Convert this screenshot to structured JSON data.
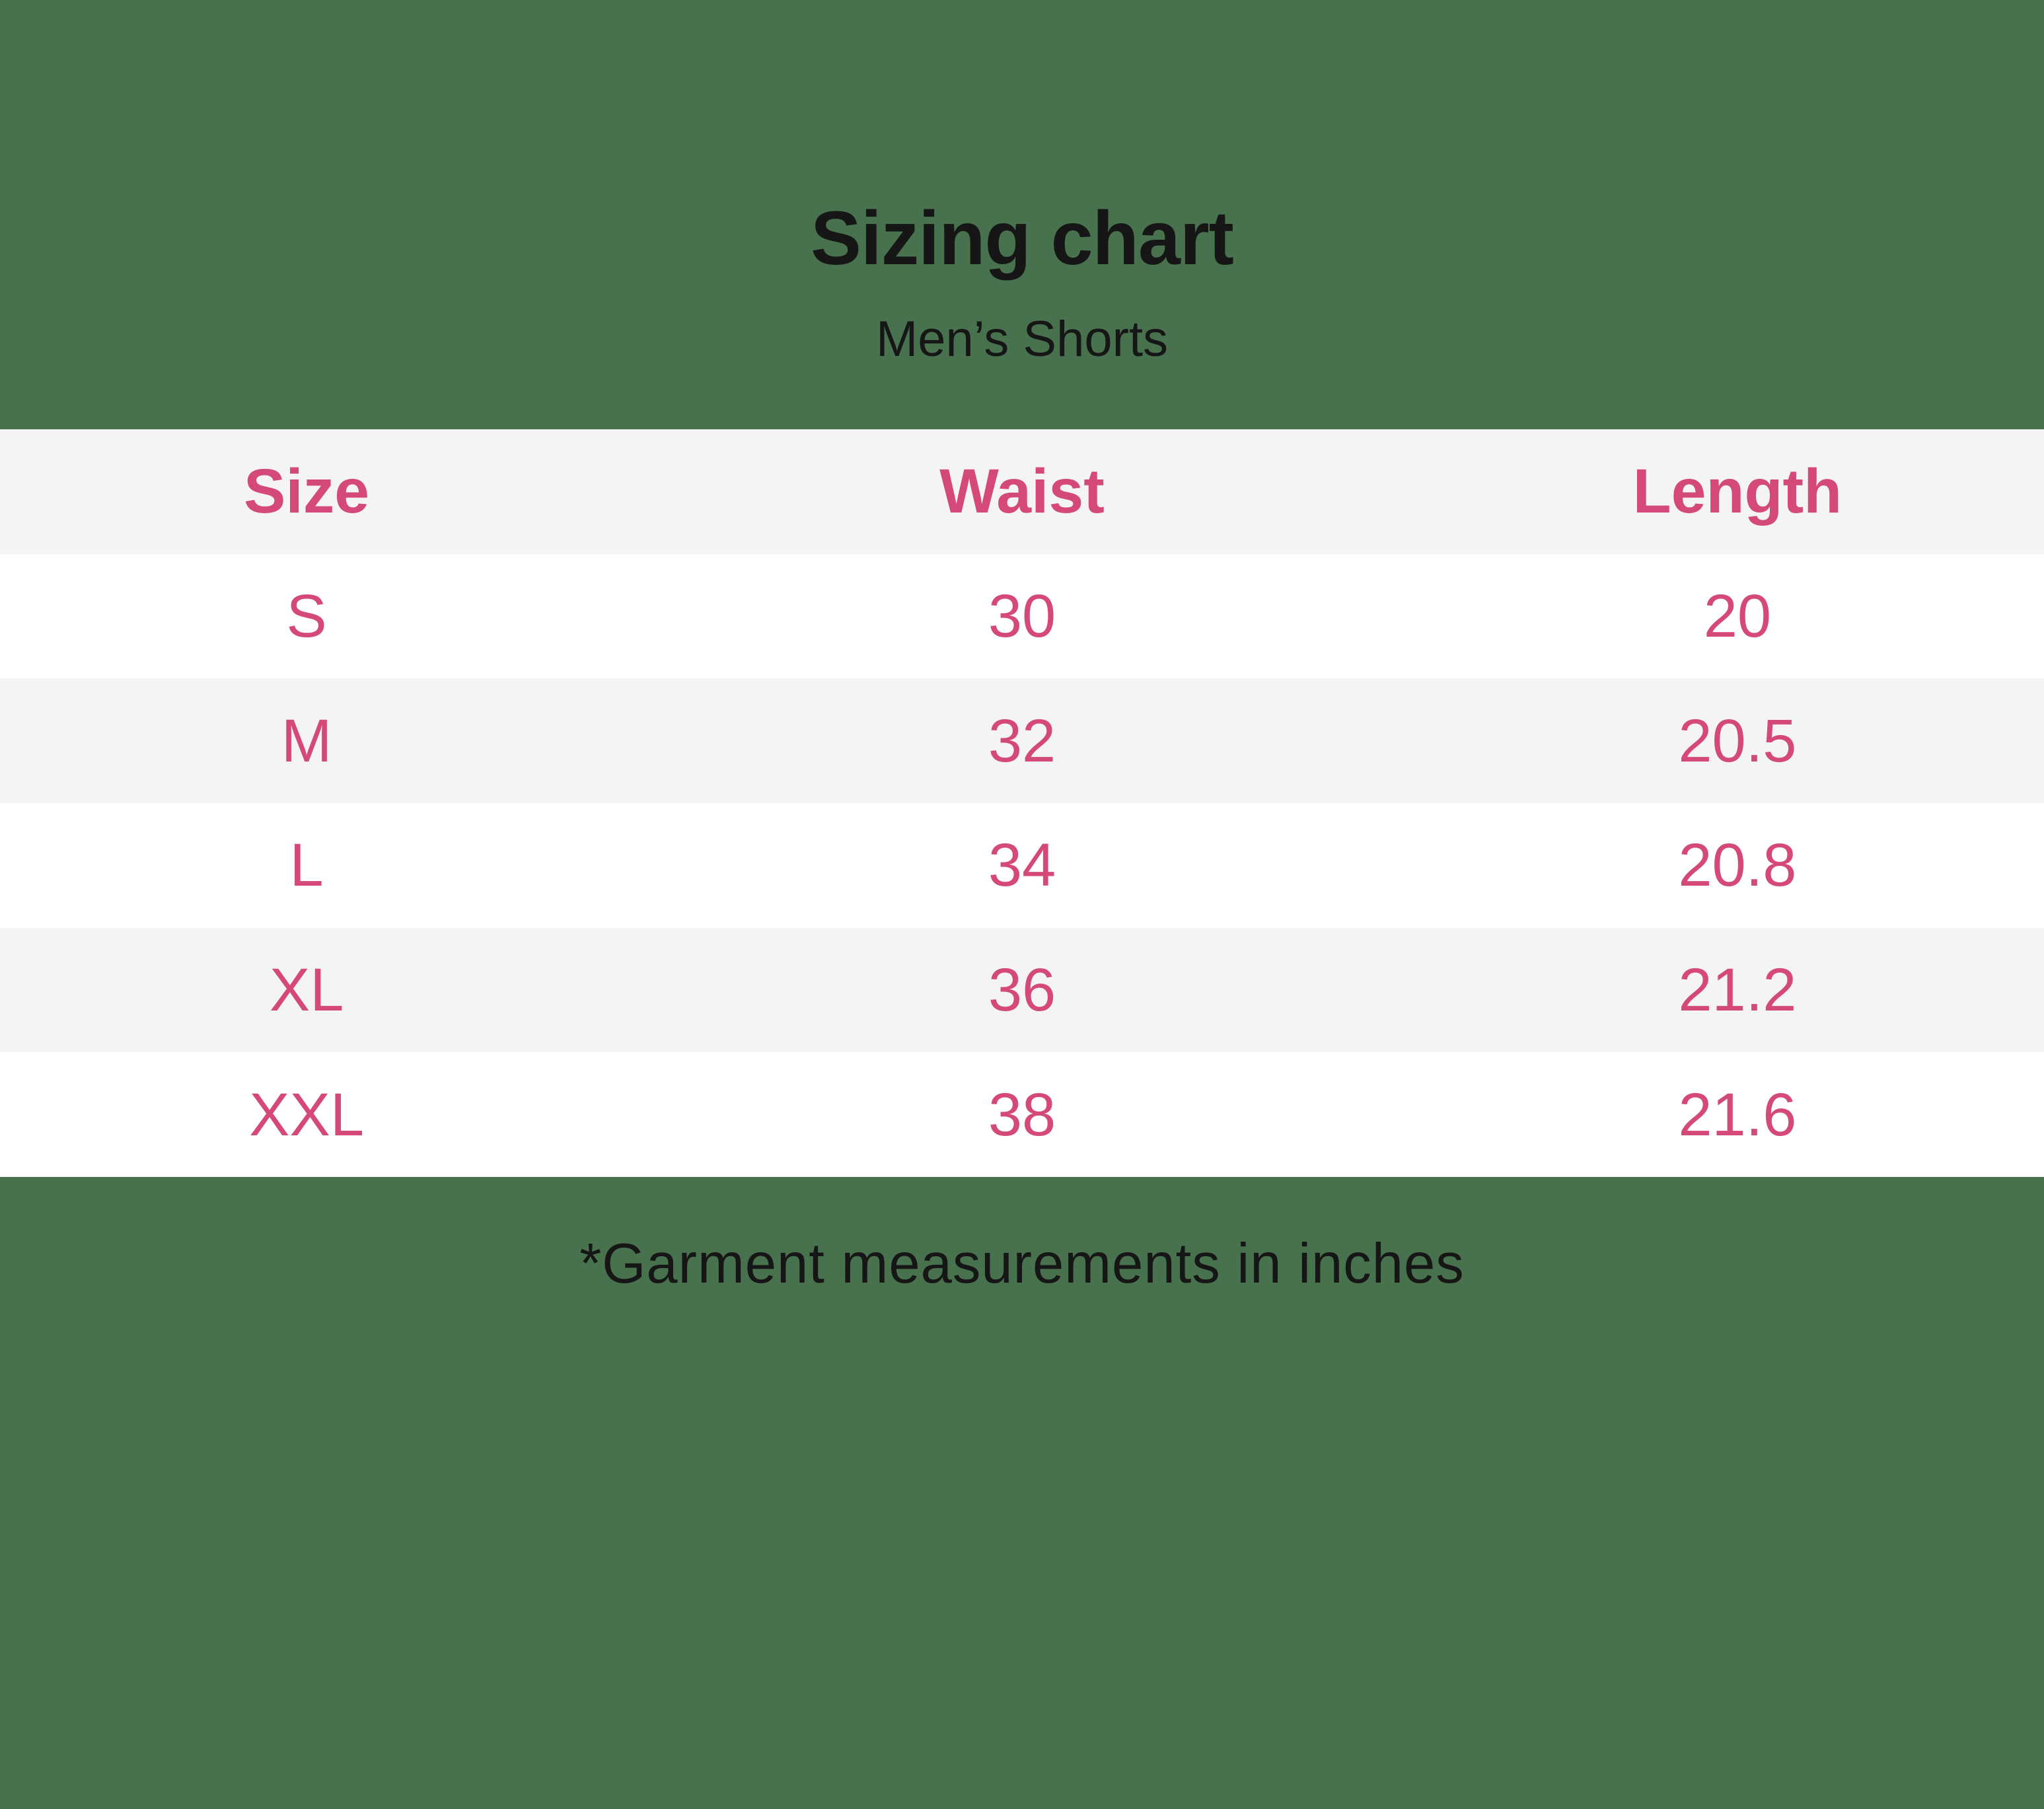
{
  "page": {
    "background_color": "#48714D",
    "accent_pink": "#D5487A",
    "row_alt_bg": "#f4f4f4",
    "row_bg": "#ffffff",
    "text_color": "#161616"
  },
  "chart_data": {
    "type": "table",
    "title": "Sizing chart",
    "subtitle": "Men’s Shorts",
    "columns": [
      "Size",
      "Waist",
      "Length"
    ],
    "rows": [
      [
        "S",
        "30",
        "20"
      ],
      [
        "M",
        "32",
        "20.5"
      ],
      [
        "L",
        "34",
        "20.8"
      ],
      [
        "XL",
        "36",
        "21.2"
      ],
      [
        "XXL",
        "38",
        "21.6"
      ]
    ],
    "footnote": "*Garment measurements in inches",
    "units": "inches",
    "layout": {
      "grid": false,
      "header_bg": "#f4f4f4",
      "zebra_striping": true
    }
  }
}
